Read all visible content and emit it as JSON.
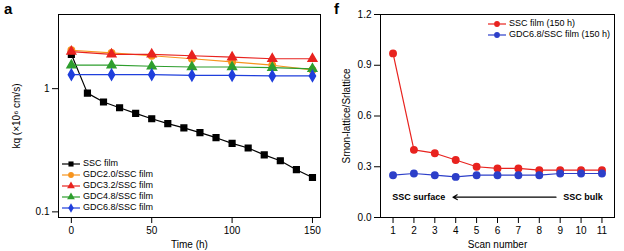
{
  "chart_data": [
    {
      "type": "line",
      "title": "a",
      "x_label": "Time (h)",
      "y_label": "kq (×10⁶ cm/s)",
      "log": "y",
      "xlim": [
        -8,
        155
      ],
      "xticks": [
        0,
        50,
        100,
        150
      ],
      "ylim": [
        0.09,
        4
      ],
      "yticks": [
        0.1,
        1
      ],
      "legend": "bottom-left",
      "series": [
        {
          "name": "SSC film",
          "color": "#000000",
          "marker": "square",
          "x": [
            0,
            10,
            20,
            30,
            40,
            50,
            60,
            70,
            80,
            90,
            100,
            110,
            120,
            130,
            140,
            150
          ],
          "values": [
            1.9,
            0.92,
            0.78,
            0.7,
            0.63,
            0.57,
            0.52,
            0.48,
            0.44,
            0.4,
            0.36,
            0.33,
            0.29,
            0.26,
            0.22,
            0.19
          ]
        },
        {
          "name": "GDC2.0/SSC film",
          "color": "#f7941d",
          "marker": "circle",
          "x": [
            0,
            25,
            50,
            75,
            100,
            125,
            150
          ],
          "values": [
            2.05,
            1.95,
            1.85,
            1.75,
            1.65,
            1.55,
            1.42
          ]
        },
        {
          "name": "GDC3.2/SSC film",
          "color": "#e8231f",
          "marker": "triangle",
          "x": [
            0,
            25,
            50,
            75,
            100,
            125,
            150
          ],
          "values": [
            2.0,
            1.9,
            1.9,
            1.85,
            1.8,
            1.75,
            1.75
          ]
        },
        {
          "name": "GDC4.8/SSC film",
          "color": "#2e9e2e",
          "marker": "triangle",
          "x": [
            0,
            25,
            50,
            75,
            100,
            125,
            150
          ],
          "values": [
            1.55,
            1.55,
            1.52,
            1.5,
            1.5,
            1.48,
            1.45
          ]
        },
        {
          "name": "GDC6.8/SSC film",
          "color": "#1f3fdc",
          "marker": "diamond",
          "x": [
            0,
            25,
            50,
            75,
            100,
            125,
            150
          ],
          "values": [
            1.3,
            1.3,
            1.3,
            1.28,
            1.28,
            1.27,
            1.27
          ]
        }
      ]
    },
    {
      "type": "line",
      "title": "f",
      "x_label": "Scan number",
      "y_label": "Srnon-lattice/Srlattice",
      "xlim": [
        0.4,
        11.6
      ],
      "xticks": [
        1,
        2,
        3,
        4,
        5,
        6,
        7,
        8,
        9,
        10,
        11
      ],
      "ylim": [
        0,
        1.2
      ],
      "yticks": [
        {
          "value": 0,
          "label": "0.0"
        },
        0.3,
        0.6,
        0.9,
        1.2
      ],
      "legend": "top-right",
      "annotations": [
        "SSC surface",
        "SSC bulk"
      ],
      "series": [
        {
          "name": "SSC film (150 h)",
          "color": "#e8231f",
          "marker": "circle",
          "x": [
            1,
            2,
            3,
            4,
            5,
            6,
            7,
            8,
            9,
            10,
            11
          ],
          "values": [
            0.97,
            0.4,
            0.38,
            0.34,
            0.3,
            0.29,
            0.29,
            0.28,
            0.28,
            0.28,
            0.28
          ]
        },
        {
          "name": "GDC6.8/SSC film (150 h)",
          "color": "#2d3fc9",
          "marker": "circle",
          "x": [
            1,
            2,
            3,
            4,
            5,
            6,
            7,
            8,
            9,
            10,
            11
          ],
          "values": [
            0.25,
            0.26,
            0.25,
            0.24,
            0.25,
            0.25,
            0.25,
            0.25,
            0.26,
            0.26,
            0.26
          ]
        }
      ]
    }
  ]
}
